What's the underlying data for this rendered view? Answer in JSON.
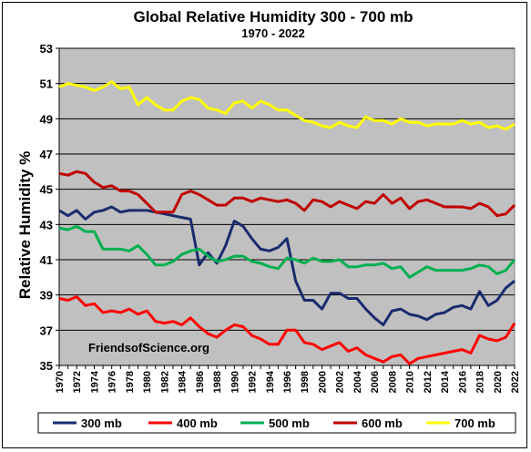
{
  "chart_data": {
    "type": "line",
    "title": "Global Relative Humidity 300 - 700 mb",
    "subtitle": "1970 - 2022",
    "ylabel": "Relative Humidity %",
    "xlabel": "",
    "ylim": [
      35,
      53
    ],
    "yticks": [
      35,
      37,
      39,
      41,
      43,
      45,
      47,
      49,
      51,
      53
    ],
    "xticks": [
      1970,
      1972,
      1974,
      1976,
      1978,
      1980,
      1982,
      1984,
      1986,
      1988,
      1990,
      1992,
      1994,
      1996,
      1998,
      2000,
      2002,
      2004,
      2006,
      2008,
      2010,
      2012,
      2014,
      2016,
      2018,
      2020,
      2022
    ],
    "grid": true,
    "legend_position": "bottom",
    "annotation": "FriendsofScience.org",
    "x": [
      1970,
      1971,
      1972,
      1973,
      1974,
      1975,
      1976,
      1977,
      1978,
      1979,
      1980,
      1981,
      1982,
      1983,
      1984,
      1985,
      1986,
      1987,
      1988,
      1989,
      1990,
      1991,
      1992,
      1993,
      1994,
      1995,
      1996,
      1997,
      1998,
      1999,
      2000,
      2001,
      2002,
      2003,
      2004,
      2005,
      2006,
      2007,
      2008,
      2009,
      2010,
      2011,
      2012,
      2013,
      2014,
      2015,
      2016,
      2017,
      2018,
      2019,
      2020,
      2021,
      2022
    ],
    "series": [
      {
        "name": "300 mb",
        "color": "#1a2b6d",
        "values": [
          43.8,
          43.5,
          43.8,
          43.3,
          43.7,
          43.8,
          44.0,
          43.7,
          43.8,
          43.8,
          43.8,
          43.7,
          43.6,
          43.5,
          43.4,
          43.3,
          40.7,
          41.4,
          40.8,
          41.8,
          43.2,
          42.9,
          42.2,
          41.6,
          41.5,
          41.7,
          42.2,
          39.8,
          38.7,
          38.7,
          38.2,
          39.1,
          39.1,
          38.8,
          38.8,
          38.2,
          37.7,
          37.3,
          38.1,
          38.2,
          37.9,
          37.8,
          37.6,
          37.9,
          38.0,
          38.3,
          38.4,
          38.2,
          39.2,
          38.4,
          38.7,
          39.4,
          39.8
        ]
      },
      {
        "name": "400 mb",
        "color": "#ff0000",
        "values": [
          38.8,
          38.7,
          38.9,
          38.4,
          38.5,
          38.0,
          38.1,
          38.0,
          38.2,
          37.9,
          38.1,
          37.5,
          37.4,
          37.5,
          37.3,
          37.7,
          37.2,
          36.8,
          36.6,
          37.0,
          37.3,
          37.2,
          36.7,
          36.5,
          36.2,
          36.2,
          37.0,
          37.0,
          36.3,
          36.2,
          35.9,
          36.1,
          36.3,
          35.8,
          36.0,
          35.6,
          35.4,
          35.2,
          35.5,
          35.6,
          35.1,
          35.4,
          35.5,
          35.6,
          35.7,
          35.8,
          35.9,
          35.7,
          36.7,
          36.5,
          36.4,
          36.6,
          37.4
        ]
      },
      {
        "name": "500 mb",
        "color": "#00b050",
        "values": [
          42.8,
          42.7,
          42.9,
          42.6,
          42.6,
          41.6,
          41.6,
          41.6,
          41.5,
          41.8,
          41.3,
          40.7,
          40.7,
          40.9,
          41.3,
          41.5,
          41.6,
          41.2,
          40.9,
          41.0,
          41.2,
          41.2,
          40.9,
          40.8,
          40.6,
          40.5,
          41.1,
          41.0,
          40.8,
          41.1,
          40.9,
          40.9,
          41.0,
          40.6,
          40.6,
          40.7,
          40.7,
          40.8,
          40.5,
          40.6,
          40.0,
          40.3,
          40.6,
          40.4,
          40.4,
          40.4,
          40.4,
          40.5,
          40.7,
          40.6,
          40.2,
          40.4,
          41.0
        ]
      },
      {
        "name": "600 mb",
        "color": "#c00000",
        "values": [
          45.9,
          45.8,
          46.0,
          45.9,
          45.4,
          45.1,
          45.2,
          44.9,
          44.9,
          44.7,
          44.2,
          43.7,
          43.7,
          43.7,
          44.7,
          44.9,
          44.7,
          44.4,
          44.1,
          44.1,
          44.5,
          44.5,
          44.3,
          44.5,
          44.4,
          44.3,
          44.4,
          44.2,
          43.8,
          44.4,
          44.3,
          44.0,
          44.3,
          44.1,
          43.9,
          44.3,
          44.2,
          44.7,
          44.2,
          44.5,
          43.9,
          44.3,
          44.4,
          44.2,
          44.0,
          44.0,
          44.0,
          43.9,
          44.2,
          44.0,
          43.5,
          43.6,
          44.1
        ]
      },
      {
        "name": "700 mb",
        "color": "#ffff00",
        "values": [
          50.8,
          51.0,
          50.9,
          50.8,
          50.6,
          50.8,
          51.1,
          50.7,
          50.8,
          49.8,
          50.2,
          49.8,
          49.5,
          49.5,
          50.0,
          50.2,
          50.1,
          49.6,
          49.5,
          49.3,
          49.9,
          50.0,
          49.6,
          50.0,
          49.8,
          49.5,
          49.5,
          49.2,
          48.9,
          48.8,
          48.6,
          48.5,
          48.8,
          48.6,
          48.5,
          49.1,
          48.9,
          48.9,
          48.7,
          49.0,
          48.8,
          48.8,
          48.6,
          48.7,
          48.7,
          48.7,
          48.9,
          48.7,
          48.8,
          48.5,
          48.6,
          48.4,
          48.7
        ]
      }
    ]
  }
}
